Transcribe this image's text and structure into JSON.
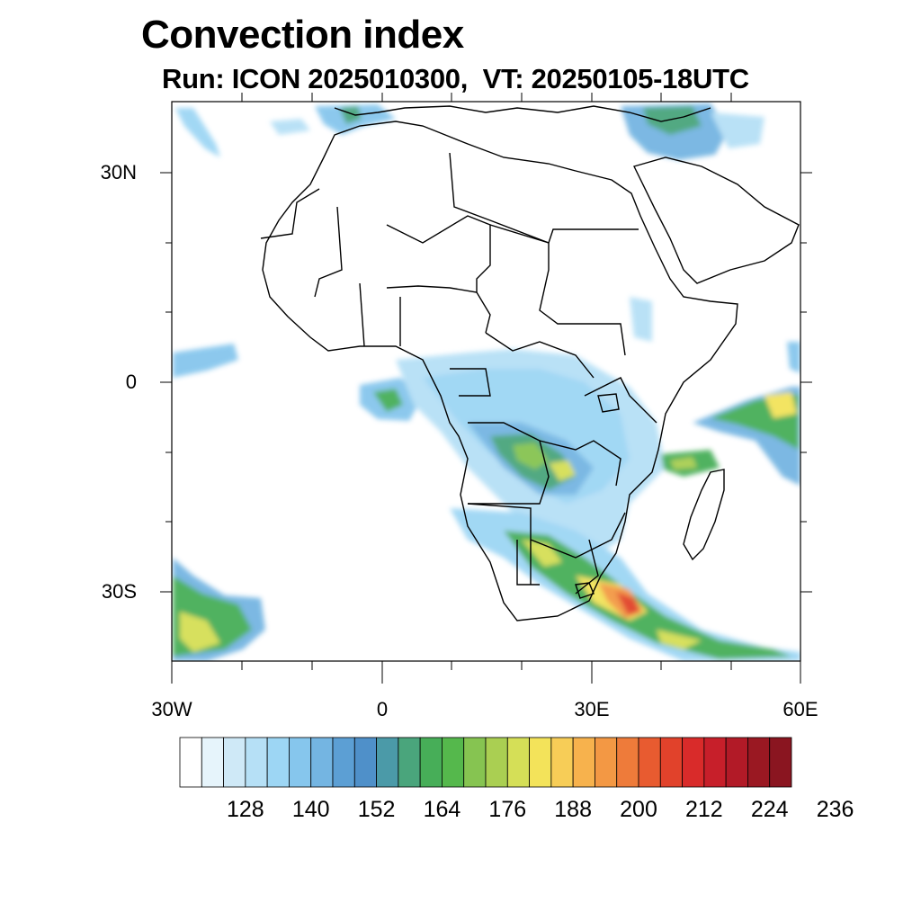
{
  "header": {
    "title": "Convection index",
    "subtitle": "Run: ICON 2025010300,  VT: 20250105-18UTC"
  },
  "axes": {
    "lat_labels": [
      "30N",
      "0",
      "30S"
    ],
    "lon_labels": [
      "30W",
      "0",
      "30E",
      "60E"
    ]
  },
  "map": {
    "lon_range": [
      -30,
      60
    ],
    "lat_range": [
      -40,
      40
    ],
    "variable": "Convection index",
    "model": "ICON",
    "run": "2025010300",
    "valid_time": "20250105-18UTC"
  },
  "colorbar": {
    "labels": [
      "128",
      "140",
      "152",
      "164",
      "176",
      "188",
      "200",
      "212",
      "224",
      "236"
    ],
    "colors": [
      "#ffffff",
      "#e6f4fb",
      "#cfe9f7",
      "#b6e0f6",
      "#9dd6f4",
      "#86c6ed",
      "#74b5e2",
      "#5c9fd4",
      "#4f90c9",
      "#4b9aa8",
      "#4aa57c",
      "#47ae58",
      "#55b84c",
      "#86c451",
      "#aacf52",
      "#d5df57",
      "#f3e35a",
      "#f7cd57",
      "#f7b24d",
      "#f39844",
      "#ee7b3a",
      "#e85b30",
      "#e1422b",
      "#d92b2a",
      "#c71f2a",
      "#b21a27",
      "#9a1822",
      "#8a1520"
    ]
  }
}
